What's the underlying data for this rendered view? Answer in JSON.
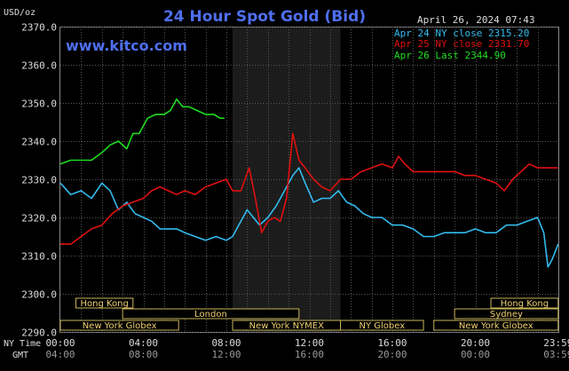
{
  "chart_data": {
    "type": "line",
    "title": "24 Hour Spot Gold (Bid)",
    "unit_label": "USD/oz",
    "watermark": "www.kitco.com",
    "timestamp": "April 26, 2024 07:43",
    "ylim": [
      2290,
      2370
    ],
    "y_ticks": [
      "2370.0",
      "2360.0",
      "2350.0",
      "2340.0",
      "2330.0",
      "2320.0",
      "2310.0",
      "2300.0",
      "2290.0"
    ],
    "legend": [
      {
        "text": "Apr 24 NY close 2315.20",
        "color": "#33bbee"
      },
      {
        "text": "Apr 25 NY close 2331.70",
        "color": "#e01010"
      },
      {
        "text": "Apr 26 Last 2344.90",
        "color": "#20dd20"
      }
    ],
    "x_row_labels": {
      "ny": "NY Time",
      "gmt": "GMT"
    },
    "x_ticks_ny": [
      "00:00",
      "04:00",
      "08:00",
      "12:00",
      "16:00",
      "20:00",
      "23:59"
    ],
    "x_ticks_gmt": [
      "04:00",
      "08:00",
      "12:00",
      "16:00",
      "20:00",
      "00:00",
      "03:59"
    ],
    "shaded_hours_ny": [
      8.3,
      13.5
    ],
    "sessions": [
      {
        "name": "Hong Kong",
        "row": 0,
        "start": 0.75,
        "end": 3.5
      },
      {
        "name": "Hong Kong",
        "row": 0,
        "start": 20.75,
        "end": 23.99
      },
      {
        "name": "London",
        "row": 1,
        "start": 3.0,
        "end": 11.5
      },
      {
        "name": "Sydney",
        "row": 1,
        "start": 19.0,
        "end": 23.99
      },
      {
        "name": "New York Globex",
        "row": 2,
        "start": 0,
        "end": 5.7
      },
      {
        "name": "New York NYMEX",
        "row": 2,
        "start": 8.3,
        "end": 13.5
      },
      {
        "name": "NY Globex",
        "row": 2,
        "start": 13.5,
        "end": 17.5
      },
      {
        "name": "New York Globex",
        "row": 2,
        "start": 18.0,
        "end": 23.99
      }
    ],
    "series": [
      {
        "name": "Apr 24",
        "color": "#33bbee",
        "points": [
          [
            0,
            2329
          ],
          [
            0.5,
            2326
          ],
          [
            1,
            2327
          ],
          [
            1.5,
            2325
          ],
          [
            2,
            2329
          ],
          [
            2.4,
            2327
          ],
          [
            2.8,
            2322
          ],
          [
            3.2,
            2324
          ],
          [
            3.6,
            2321
          ],
          [
            4,
            2320
          ],
          [
            4.4,
            2319
          ],
          [
            4.8,
            2317
          ],
          [
            5.2,
            2317
          ],
          [
            5.6,
            2317
          ],
          [
            6,
            2316
          ],
          [
            6.5,
            2315
          ],
          [
            7,
            2314
          ],
          [
            7.5,
            2315
          ],
          [
            8,
            2314
          ],
          [
            8.3,
            2315
          ],
          [
            8.6,
            2318
          ],
          [
            9,
            2322
          ],
          [
            9.3,
            2320
          ],
          [
            9.6,
            2318
          ],
          [
            10,
            2320
          ],
          [
            10.4,
            2323
          ],
          [
            10.8,
            2327
          ],
          [
            11.2,
            2331
          ],
          [
            11.5,
            2333
          ],
          [
            11.8,
            2329
          ],
          [
            12.2,
            2324
          ],
          [
            12.6,
            2325
          ],
          [
            13,
            2325
          ],
          [
            13.4,
            2327
          ],
          [
            13.8,
            2324
          ],
          [
            14.2,
            2323
          ],
          [
            14.6,
            2321
          ],
          [
            15,
            2320
          ],
          [
            15.5,
            2320
          ],
          [
            16,
            2318
          ],
          [
            16.5,
            2318
          ],
          [
            17,
            2317
          ],
          [
            17.5,
            2315
          ],
          [
            18,
            2315
          ],
          [
            18.5,
            2316
          ],
          [
            19,
            2316
          ],
          [
            19.5,
            2316
          ],
          [
            20,
            2317
          ],
          [
            20.5,
            2316
          ],
          [
            21,
            2316
          ],
          [
            21.5,
            2318
          ],
          [
            22,
            2318
          ],
          [
            22.5,
            2319
          ],
          [
            23,
            2320
          ],
          [
            23.3,
            2316
          ],
          [
            23.5,
            2307
          ],
          [
            23.7,
            2309
          ],
          [
            23.99,
            2313
          ]
        ]
      },
      {
        "name": "Apr 25",
        "color": "#e01010",
        "points": [
          [
            0,
            2313
          ],
          [
            0.5,
            2313
          ],
          [
            1,
            2315
          ],
          [
            1.5,
            2317
          ],
          [
            2,
            2318
          ],
          [
            2.5,
            2321
          ],
          [
            3,
            2323
          ],
          [
            3.5,
            2324
          ],
          [
            4,
            2325
          ],
          [
            4.4,
            2327
          ],
          [
            4.8,
            2328
          ],
          [
            5.2,
            2327
          ],
          [
            5.6,
            2326
          ],
          [
            6,
            2327
          ],
          [
            6.5,
            2326
          ],
          [
            7,
            2328
          ],
          [
            7.5,
            2329
          ],
          [
            8,
            2330
          ],
          [
            8.3,
            2327
          ],
          [
            8.7,
            2327
          ],
          [
            9.1,
            2333
          ],
          [
            9.4,
            2325
          ],
          [
            9.7,
            2316
          ],
          [
            10,
            2319
          ],
          [
            10.3,
            2320
          ],
          [
            10.6,
            2319
          ],
          [
            10.9,
            2325
          ],
          [
            11.2,
            2342
          ],
          [
            11.5,
            2335
          ],
          [
            11.8,
            2333
          ],
          [
            12.2,
            2330
          ],
          [
            12.6,
            2328
          ],
          [
            13,
            2327
          ],
          [
            13.5,
            2330
          ],
          [
            14,
            2330
          ],
          [
            14.5,
            2332
          ],
          [
            15,
            2333
          ],
          [
            15.5,
            2334
          ],
          [
            16,
            2333
          ],
          [
            16.3,
            2336
          ],
          [
            16.6,
            2334
          ],
          [
            17,
            2332
          ],
          [
            17.5,
            2332
          ],
          [
            18,
            2332
          ],
          [
            18.5,
            2332
          ],
          [
            19,
            2332
          ],
          [
            19.5,
            2331
          ],
          [
            20,
            2331
          ],
          [
            20.5,
            2330
          ],
          [
            21,
            2329
          ],
          [
            21.4,
            2327
          ],
          [
            21.8,
            2330
          ],
          [
            22.2,
            2332
          ],
          [
            22.6,
            2334
          ],
          [
            23,
            2333
          ],
          [
            23.5,
            2333
          ],
          [
            23.99,
            2333
          ]
        ]
      },
      {
        "name": "Apr 26",
        "color": "#20dd20",
        "points": [
          [
            0,
            2334
          ],
          [
            0.5,
            2335
          ],
          [
            1,
            2335
          ],
          [
            1.5,
            2335
          ],
          [
            2,
            2337
          ],
          [
            2.4,
            2339
          ],
          [
            2.8,
            2340
          ],
          [
            3.2,
            2338
          ],
          [
            3.5,
            2342
          ],
          [
            3.8,
            2342
          ],
          [
            4.2,
            2346
          ],
          [
            4.6,
            2347
          ],
          [
            5,
            2347
          ],
          [
            5.3,
            2348
          ],
          [
            5.6,
            2351
          ],
          [
            5.9,
            2349
          ],
          [
            6.2,
            2349
          ],
          [
            6.6,
            2348
          ],
          [
            7,
            2347
          ],
          [
            7.4,
            2347
          ],
          [
            7.7,
            2346
          ],
          [
            7.9,
            2346
          ]
        ]
      }
    ]
  }
}
